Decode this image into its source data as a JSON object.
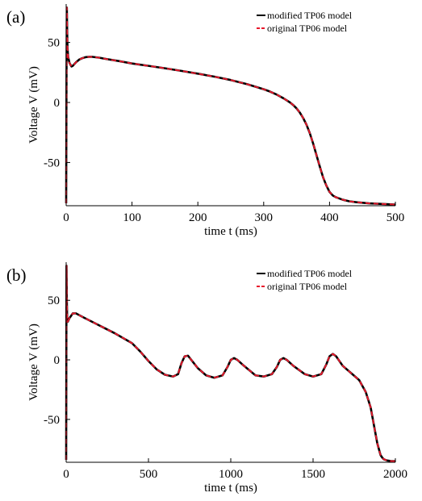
{
  "chart_data": [
    {
      "type": "line",
      "panel_label": "(a)",
      "xlabel": "time t (ms)",
      "ylabel": "Voltage V (mV)",
      "xlim": [
        0,
        500
      ],
      "ylim": [
        -86,
        82
      ],
      "xticks": [
        0,
        100,
        200,
        300,
        400,
        500
      ],
      "yticks": [
        -50,
        0,
        50
      ],
      "grid": false,
      "legend_position": "top-right",
      "series": [
        {
          "name": "modified TP06 model",
          "color": "#000000",
          "style": "solid",
          "x": [
            0,
            0.5,
            1,
            1.5,
            2,
            3,
            5,
            8,
            10,
            15,
            20,
            25,
            30,
            35,
            40,
            50,
            60,
            80,
            100,
            125,
            150,
            175,
            200,
            225,
            250,
            275,
            300,
            310,
            320,
            330,
            340,
            345,
            350,
            355,
            360,
            365,
            370,
            375,
            380,
            385,
            390,
            395,
            400,
            405,
            410,
            420,
            430,
            440,
            460,
            480,
            500
          ],
          "y": [
            -84,
            20,
            79,
            60,
            46,
            38,
            33,
            30,
            30.5,
            33.5,
            35.8,
            37,
            37.8,
            38,
            38,
            37.3,
            36.3,
            34.5,
            32.5,
            30.5,
            28.5,
            26.3,
            24,
            21.5,
            18.7,
            15.2,
            11,
            9,
            6.5,
            3.5,
            0,
            -2.2,
            -5,
            -8.5,
            -13,
            -18.5,
            -25.5,
            -34,
            -43.5,
            -53,
            -62,
            -69,
            -74.5,
            -77.5,
            -79,
            -81,
            -82.3,
            -83,
            -84,
            -84.5,
            -85
          ]
        },
        {
          "name": "original TP06 model",
          "color": "#e8192c",
          "style": "dashed",
          "x": [
            0,
            0.5,
            1,
            1.5,
            2,
            3,
            5,
            8,
            10,
            15,
            20,
            25,
            30,
            35,
            40,
            50,
            60,
            80,
            100,
            125,
            150,
            175,
            200,
            225,
            250,
            275,
            300,
            310,
            320,
            330,
            340,
            345,
            350,
            355,
            360,
            365,
            370,
            375,
            380,
            385,
            390,
            395,
            400,
            405,
            410,
            420,
            430,
            440,
            460,
            480,
            500
          ],
          "y": [
            -84,
            20,
            79,
            60,
            46,
            38,
            33,
            30,
            30.5,
            33.5,
            35.8,
            37,
            37.8,
            38,
            38,
            37.3,
            36.3,
            34.5,
            32.5,
            30.5,
            28.5,
            26.3,
            24,
            21.5,
            18.7,
            15.2,
            11,
            9,
            6.5,
            3.5,
            0,
            -2.2,
            -5,
            -8.5,
            -13,
            -18.5,
            -25.5,
            -34,
            -43.5,
            -53,
            -62,
            -69,
            -74.5,
            -77.5,
            -79,
            -81,
            -82.3,
            -83,
            -84,
            -84.5,
            -85
          ]
        }
      ]
    },
    {
      "type": "line",
      "panel_label": "(b)",
      "xlabel": "time t (ms)",
      "ylabel": "Voltage V (mV)",
      "xlim": [
        0,
        2000
      ],
      "ylim": [
        -86,
        82
      ],
      "xticks": [
        0,
        500,
        1000,
        1500,
        2000
      ],
      "yticks": [
        -50,
        0,
        50
      ],
      "grid": false,
      "legend_position": "top-right",
      "series": [
        {
          "name": "modified TP06 model",
          "color": "#000000",
          "style": "solid",
          "x": [
            0,
            2,
            4,
            6,
            10,
            20,
            40,
            60,
            100,
            200,
            300,
            400,
            450,
            500,
            550,
            600,
            650,
            680,
            700,
            720,
            740,
            760,
            800,
            850,
            900,
            950,
            980,
            1000,
            1020,
            1040,
            1080,
            1150,
            1200,
            1250,
            1280,
            1300,
            1320,
            1340,
            1380,
            1450,
            1500,
            1550,
            1580,
            1600,
            1620,
            1640,
            1680,
            1730,
            1780,
            1820,
            1850,
            1870,
            1890,
            1910,
            1920,
            1930,
            1950,
            1975,
            2000
          ],
          "y": [
            -84,
            79,
            50,
            36,
            32,
            35,
            39,
            39,
            36,
            29,
            22,
            14,
            7,
            -1,
            -8,
            -12.5,
            -14,
            -12,
            -3,
            3,
            3.5,
            0,
            -7,
            -13,
            -15,
            -13,
            -6,
            0,
            1.5,
            0,
            -5,
            -13,
            -14,
            -12,
            -6,
            0,
            1.5,
            0,
            -5,
            -12,
            -14,
            -12,
            -4,
            3,
            5,
            3,
            -5,
            -11,
            -17,
            -27,
            -40,
            -55,
            -70,
            -80,
            -82,
            -83.5,
            -84.5,
            -85,
            -85
          ]
        },
        {
          "name": "original TP06 model",
          "color": "#e8192c",
          "style": "dashed",
          "x": [
            0,
            2,
            4,
            6,
            10,
            20,
            40,
            60,
            100,
            200,
            300,
            400,
            450,
            500,
            550,
            600,
            650,
            680,
            700,
            720,
            740,
            760,
            800,
            850,
            900,
            950,
            980,
            1000,
            1020,
            1040,
            1080,
            1150,
            1200,
            1250,
            1280,
            1300,
            1320,
            1340,
            1380,
            1450,
            1500,
            1550,
            1580,
            1600,
            1620,
            1640,
            1680,
            1730,
            1780,
            1820,
            1850,
            1870,
            1890,
            1910,
            1920,
            1930,
            1950,
            1975,
            2000
          ],
          "y": [
            -84,
            79,
            50,
            36,
            32,
            35,
            39,
            39,
            36,
            29,
            22,
            14,
            7,
            -1,
            -8,
            -12.5,
            -14,
            -12,
            -3,
            3,
            3.5,
            0,
            -7,
            -13,
            -15,
            -13,
            -6,
            0,
            1.5,
            0,
            -5,
            -13,
            -14,
            -12,
            -6,
            0,
            1.5,
            0,
            -5,
            -12,
            -14,
            -12,
            -4,
            3,
            5,
            3,
            -5,
            -11,
            -17,
            -27,
            -40,
            -55,
            -70,
            -80,
            -82,
            -83.5,
            -84.5,
            -85,
            -85
          ]
        }
      ]
    }
  ]
}
